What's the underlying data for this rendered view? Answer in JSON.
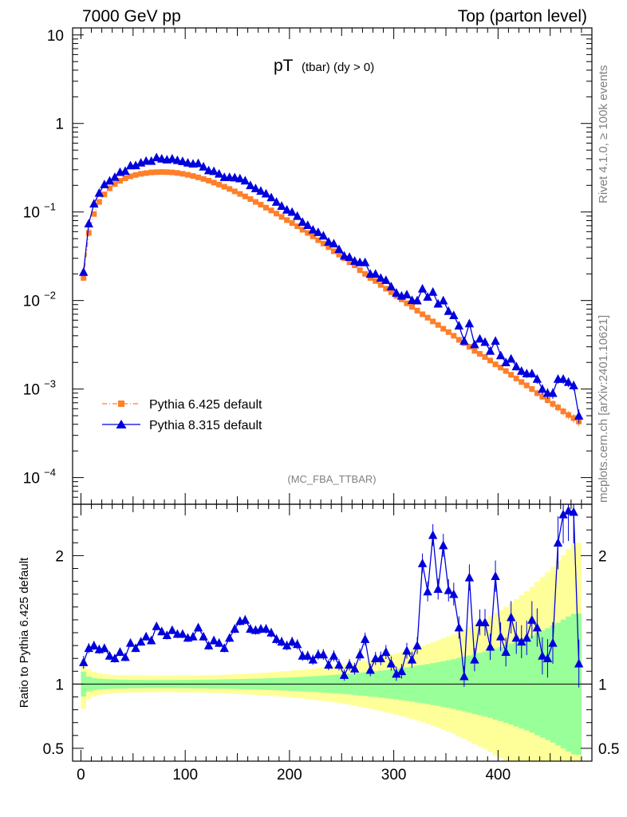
{
  "header": {
    "left": "7000 GeV pp",
    "right": "Top (parton level)"
  },
  "side": {
    "rivet": "Rivet 4.1.0, ≥ 100k events",
    "source": "mcplots.cern.ch [arXiv:2401.10621]"
  },
  "chart_data": [
    {
      "type": "line",
      "panel": "main",
      "title_main": "pT",
      "title_sub": "(tbar) (dy > 0)",
      "watermark": "(MC_FBA_TTBAR)",
      "yscale": "log",
      "ylim": [
        5e-05,
        12
      ],
      "xlim": [
        -8,
        490
      ],
      "ytick_labels": [
        {
          "value": 10,
          "label": "10"
        },
        {
          "value": 1,
          "label": "1"
        },
        {
          "value": 0.1,
          "base": "10",
          "exp": "−1"
        },
        {
          "value": 0.01,
          "base": "10",
          "exp": "−2"
        },
        {
          "value": 0.001,
          "base": "10",
          "exp": "−3"
        },
        {
          "value": 0.0001,
          "base": "10",
          "exp": "−4"
        }
      ],
      "x": [
        2.5,
        7.5,
        12.5,
        17.5,
        22.5,
        27.5,
        32.5,
        37.5,
        42.5,
        47.5,
        52.5,
        57.5,
        62.5,
        67.5,
        72.5,
        77.5,
        82.5,
        87.5,
        92.5,
        97.5,
        102.5,
        107.5,
        112.5,
        117.5,
        122.5,
        127.5,
        132.5,
        137.5,
        142.5,
        147.5,
        152.5,
        157.5,
        162.5,
        167.5,
        172.5,
        177.5,
        182.5,
        187.5,
        192.5,
        197.5,
        202.5,
        207.5,
        212.5,
        217.5,
        222.5,
        227.5,
        232.5,
        237.5,
        242.5,
        247.5,
        252.5,
        257.5,
        262.5,
        267.5,
        272.5,
        277.5,
        282.5,
        287.5,
        292.5,
        297.5,
        302.5,
        307.5,
        312.5,
        317.5,
        322.5,
        327.5,
        332.5,
        337.5,
        342.5,
        347.5,
        352.5,
        357.5,
        362.5,
        367.5,
        372.5,
        377.5,
        382.5,
        387.5,
        392.5,
        397.5,
        402.5,
        407.5,
        412.5,
        417.5,
        422.5,
        427.5,
        432.5,
        437.5,
        442.5,
        447.5,
        452.5,
        457.5,
        462.5,
        467.5,
        472.5,
        477.5
      ],
      "series": [
        {
          "name": "Pythia 6.425 default",
          "color": "#ff7f2a",
          "marker": "square",
          "linestyle": "dashdot",
          "values": [
            0.018,
            0.058,
            0.095,
            0.13,
            0.158,
            0.185,
            0.207,
            0.225,
            0.24,
            0.253,
            0.262,
            0.27,
            0.275,
            0.28,
            0.282,
            0.283,
            0.282,
            0.28,
            0.276,
            0.27,
            0.263,
            0.255,
            0.246,
            0.236,
            0.226,
            0.215,
            0.204,
            0.193,
            0.182,
            0.171,
            0.16,
            0.15,
            0.14,
            0.13,
            0.121,
            0.112,
            0.104,
            0.096,
            0.088,
            0.081,
            0.075,
            0.069,
            0.063,
            0.058,
            0.053,
            0.048,
            0.044,
            0.04,
            0.036,
            0.033,
            0.03,
            0.027,
            0.025,
            0.022,
            0.02,
            0.018,
            0.0166,
            0.015,
            0.0136,
            0.0124,
            0.0113,
            0.0103,
            0.0093,
            0.0085,
            0.0077,
            0.007,
            0.0064,
            0.0058,
            0.0053,
            0.0048,
            0.0044,
            0.004,
            0.0036,
            0.0033,
            0.003,
            0.0027,
            0.0025,
            0.0023,
            0.0021,
            0.0019,
            0.00175,
            0.0016,
            0.00145,
            0.00132,
            0.0012,
            0.0011,
            0.001,
            0.0009,
            0.00082,
            0.00075,
            0.00068,
            0.00062,
            0.00056,
            0.00051,
            0.00047,
            0.00043
          ]
        },
        {
          "name": "Pythia 8.315 default",
          "color": "#0000dd",
          "marker": "triangle",
          "linestyle": "solid",
          "values": [
            0.021,
            0.074,
            0.124,
            0.164,
            0.205,
            0.225,
            0.248,
            0.282,
            0.29,
            0.335,
            0.336,
            0.36,
            0.377,
            0.376,
            0.413,
            0.4,
            0.39,
            0.4,
            0.384,
            0.374,
            0.36,
            0.351,
            0.355,
            0.325,
            0.295,
            0.289,
            0.27,
            0.247,
            0.247,
            0.245,
            0.239,
            0.226,
            0.2,
            0.185,
            0.173,
            0.161,
            0.146,
            0.13,
            0.117,
            0.106,
            0.1,
            0.09,
            0.077,
            0.071,
            0.063,
            0.059,
            0.054,
            0.046,
            0.044,
            0.038,
            0.032,
            0.031,
            0.028,
            0.027,
            0.027,
            0.02,
            0.02,
            0.018,
            0.017,
            0.0144,
            0.0122,
            0.0113,
            0.0117,
            0.0101,
            0.01,
            0.0136,
            0.011,
            0.0125,
            0.0092,
            0.01,
            0.0076,
            0.0068,
            0.0052,
            0.0035,
            0.0055,
            0.0032,
            0.0037,
            0.0034,
            0.0027,
            0.0035,
            0.0024,
            0.002,
            0.0022,
            0.0018,
            0.0016,
            0.0015,
            0.0015,
            0.0013,
            0.001,
            0.0009,
            0.0009,
            0.0013,
            0.0013,
            0.0012,
            0.0011,
            0.0005
          ]
        }
      ]
    },
    {
      "type": "line",
      "panel": "ratio",
      "ylabel": "Ratio to Pythia 6.425 default",
      "ylim": [
        0.4,
        2.4
      ],
      "xlim": [
        -8,
        490
      ],
      "ytick_labels": [
        {
          "value": 2,
          "label": "2"
        },
        {
          "value": 1,
          "label": "1"
        },
        {
          "value": 0.5,
          "label": "0.5"
        }
      ],
      "xtick_labels": [
        {
          "value": 0,
          "label": "0"
        },
        {
          "value": 100,
          "label": "100"
        },
        {
          "value": 200,
          "label": "200"
        },
        {
          "value": 300,
          "label": "300"
        },
        {
          "value": 400,
          "label": "400"
        }
      ],
      "bands": [
        {
          "name": "reference 2σ",
          "color": "#ffff99"
        },
        {
          "name": "reference 1σ",
          "color": "#99ff99"
        }
      ],
      "series": [
        {
          "name": "Pythia 8.315 / Pythia 6.425",
          "color": "#0000dd",
          "marker": "triangle",
          "values": [
            1.17,
            1.28,
            1.3,
            1.27,
            1.28,
            1.22,
            1.2,
            1.25,
            1.21,
            1.32,
            1.28,
            1.33,
            1.37,
            1.34,
            1.45,
            1.41,
            1.38,
            1.42,
            1.39,
            1.39,
            1.36,
            1.37,
            1.44,
            1.37,
            1.3,
            1.34,
            1.32,
            1.28,
            1.36,
            1.43,
            1.49,
            1.5,
            1.43,
            1.42,
            1.43,
            1.43,
            1.4,
            1.35,
            1.33,
            1.3,
            1.33,
            1.31,
            1.22,
            1.22,
            1.19,
            1.23,
            1.23,
            1.15,
            1.22,
            1.15,
            1.07,
            1.15,
            1.12,
            1.23,
            1.35,
            1.11,
            1.2,
            1.2,
            1.25,
            1.16,
            1.08,
            1.1,
            1.26,
            1.19,
            1.3,
            1.94,
            1.72,
            2.16,
            1.74,
            2.08,
            1.73,
            1.7,
            1.44,
            1.06,
            1.83,
            1.19,
            1.48,
            1.48,
            1.29,
            1.84,
            1.37,
            1.25,
            1.52,
            1.36,
            1.33,
            1.36,
            1.5,
            1.44,
            1.22,
            1.2,
            1.32,
            2.1,
            2.32,
            2.35,
            2.34,
            1.16
          ]
        }
      ]
    }
  ]
}
